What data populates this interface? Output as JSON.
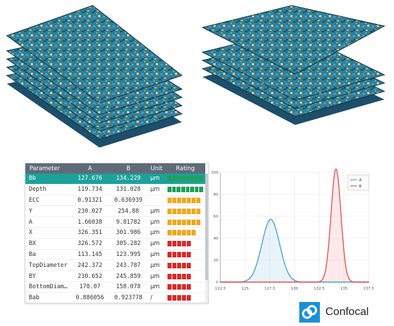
{
  "table": {
    "headers": {
      "param": "Parameter",
      "a": "A",
      "b": "B",
      "unit": "Unit",
      "rating": "Rating"
    },
    "colors": {
      "green": "#1fa05b",
      "orange": "#f0a81c",
      "red": "#d62b2b"
    },
    "rows": [
      {
        "param": "Bb",
        "a": "127.676",
        "b": "134.229",
        "unit": "µm",
        "rating": 8,
        "color": "green",
        "selected": true
      },
      {
        "param": "Depth",
        "a": "119.734",
        "b": "131.028",
        "unit": "µm",
        "rating": 8,
        "color": "green"
      },
      {
        "param": "ECC",
        "a": "0.91321",
        "b": "0.636939",
        "unit": "",
        "rating": 7,
        "color": "orange"
      },
      {
        "param": "Y",
        "a": "230.027",
        "b": "254.88",
        "unit": "µm",
        "rating": 7,
        "color": "orange"
      },
      {
        "param": "A",
        "a": "1.66038",
        "b": "9.81782",
        "unit": "µm",
        "rating": 7,
        "color": "orange"
      },
      {
        "param": "X",
        "a": "326.351",
        "b": "301.986",
        "unit": "µm",
        "rating": 6,
        "color": "orange"
      },
      {
        "param": "BX",
        "a": "326.572",
        "b": "305.282",
        "unit": "µm",
        "rating": 5,
        "color": "red"
      },
      {
        "param": "Ba",
        "a": "113.145",
        "b": "123.995",
        "unit": "µm",
        "rating": 5,
        "color": "red"
      },
      {
        "param": "TopDiameter",
        "a": "242.372",
        "b": "243.787",
        "unit": "µm",
        "rating": 5,
        "color": "red"
      },
      {
        "param": "BY",
        "a": "230.652",
        "b": "245.859",
        "unit": "µm",
        "rating": 5,
        "color": "red"
      },
      {
        "param": "BottomDiam…",
        "a": "170.07",
        "b": "158.078",
        "unit": "µm",
        "rating": 5,
        "color": "red"
      },
      {
        "param": "Bab",
        "a": "0.886056",
        "b": "0.923778",
        "unit": "/",
        "rating": 5,
        "color": "red"
      }
    ]
  },
  "chart_data": {
    "type": "line",
    "xlim": [
      122.5,
      137.5
    ],
    "ylim": [
      0,
      100
    ],
    "x_ticks": [
      "122.5",
      "125",
      "127.5",
      "130",
      "132.5",
      "135",
      "137.5"
    ],
    "y_ticks": [
      "0",
      "20",
      "40",
      "60",
      "80",
      "100"
    ],
    "legend_position": "top-right",
    "series": [
      {
        "name": "A",
        "color": "#4aa3d6",
        "mean": 127.6,
        "sd": 0.9,
        "peak": 57
      },
      {
        "name": "B",
        "color": "#e85555",
        "mean": 134.2,
        "sd": 0.5,
        "peak": 103
      }
    ]
  },
  "brand": {
    "name": "Confocal",
    "color": "#1a8fd8"
  }
}
